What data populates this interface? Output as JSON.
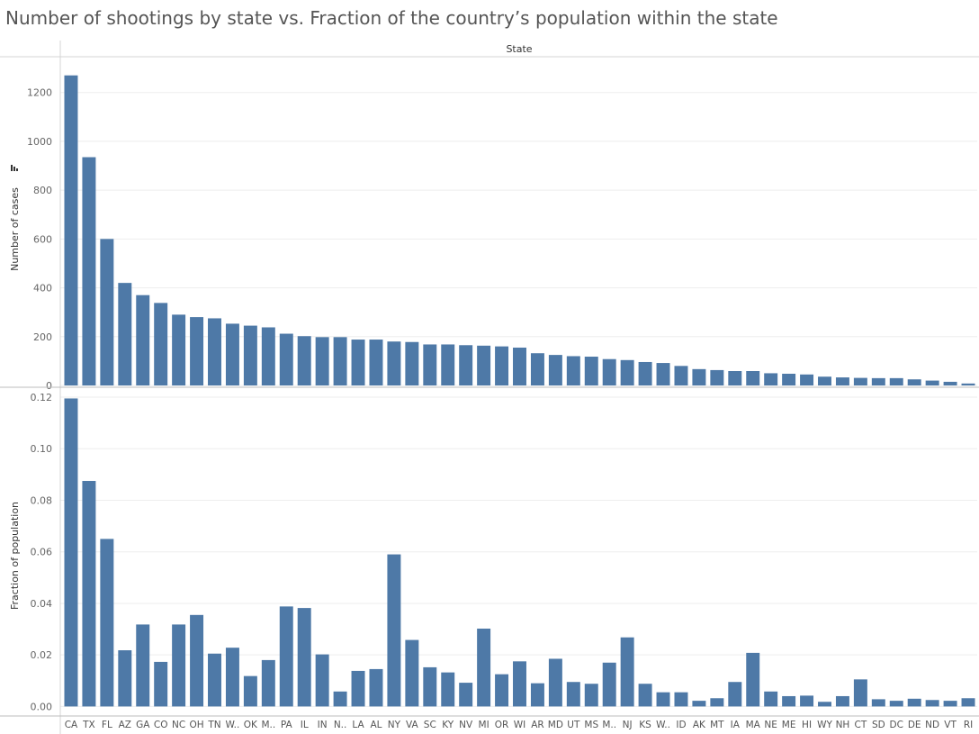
{
  "title": "Number of shootings by state vs. Fraction of the country’s population within the state",
  "header": "State",
  "colors": {
    "bar": "#4e79a7",
    "grid": "#eeeeee",
    "axis": "#d4d4d4"
  },
  "sort_icon": "sort-descending-icon",
  "chart_data": [
    {
      "type": "bar",
      "ylabel": "Number of cases",
      "ylim": [
        0,
        1280
      ],
      "yticks": [
        0,
        200,
        400,
        600,
        800,
        1000,
        1200
      ],
      "ytick_labels": [
        "0",
        "200",
        "400",
        "600",
        "800",
        "1000",
        "1200"
      ],
      "categories": [
        "CA",
        "TX",
        "FL",
        "AZ",
        "GA",
        "CO",
        "NC",
        "OH",
        "TN",
        "W..",
        "OK",
        "M..",
        "PA",
        "IL",
        "IN",
        "N..",
        "LA",
        "AL",
        "NY",
        "VA",
        "SC",
        "KY",
        "NV",
        "MI",
        "OR",
        "WI",
        "AR",
        "MD",
        "UT",
        "MS",
        "M..",
        "NJ",
        "KS",
        "W..",
        "ID",
        "AK",
        "MT",
        "IA",
        "MA",
        "NE",
        "ME",
        "HI",
        "WY",
        "NH",
        "CT",
        "SD",
        "DC",
        "DE",
        "ND",
        "VT",
        "RI"
      ],
      "values": [
        1270,
        935,
        600,
        420,
        370,
        338,
        290,
        280,
        275,
        253,
        245,
        238,
        212,
        202,
        198,
        198,
        188,
        188,
        180,
        178,
        168,
        168,
        165,
        163,
        160,
        155,
        132,
        125,
        120,
        118,
        108,
        104,
        96,
        92,
        80,
        67,
        63,
        59,
        59,
        50,
        48,
        45,
        36,
        33,
        31,
        30,
        30,
        25,
        20,
        15,
        8
      ]
    },
    {
      "type": "bar",
      "ylabel": "Fraction of population",
      "ylim": [
        -0.003,
        0.12
      ],
      "yticks": [
        0,
        0.02,
        0.04,
        0.06,
        0.08,
        0.1,
        0.12
      ],
      "ytick_labels": [
        "0.00",
        "0.02",
        "0.04",
        "0.06",
        "0.08",
        "0.10",
        "0.12"
      ],
      "categories": [
        "CA",
        "TX",
        "FL",
        "AZ",
        "GA",
        "CO",
        "NC",
        "OH",
        "TN",
        "W..",
        "OK",
        "M..",
        "PA",
        "IL",
        "IN",
        "N..",
        "LA",
        "AL",
        "NY",
        "VA",
        "SC",
        "KY",
        "NV",
        "MI",
        "OR",
        "WI",
        "AR",
        "MD",
        "UT",
        "MS",
        "M..",
        "NJ",
        "KS",
        "W..",
        "ID",
        "AK",
        "MT",
        "IA",
        "MA",
        "NE",
        "ME",
        "HI",
        "WY",
        "NH",
        "CT",
        "SD",
        "DC",
        "DE",
        "ND",
        "VT",
        "RI"
      ],
      "values": [
        0.1195,
        0.0875,
        0.065,
        0.0218,
        0.0318,
        0.0173,
        0.0318,
        0.0355,
        0.0205,
        0.0228,
        0.0118,
        0.018,
        0.0388,
        0.0382,
        0.0202,
        0.0058,
        0.0138,
        0.0145,
        0.059,
        0.0258,
        0.0152,
        0.0132,
        0.0092,
        0.0302,
        0.0125,
        0.0175,
        0.009,
        0.0185,
        0.0095,
        0.0088,
        0.017,
        0.0268,
        0.0088,
        0.0055,
        0.0055,
        0.0022,
        0.0032,
        0.0095,
        0.0208,
        0.0058,
        0.004,
        0.0042,
        0.0018,
        0.004,
        0.0105,
        0.0028,
        0.0022,
        0.003,
        0.0025,
        0.0022,
        0.0032
      ]
    }
  ]
}
